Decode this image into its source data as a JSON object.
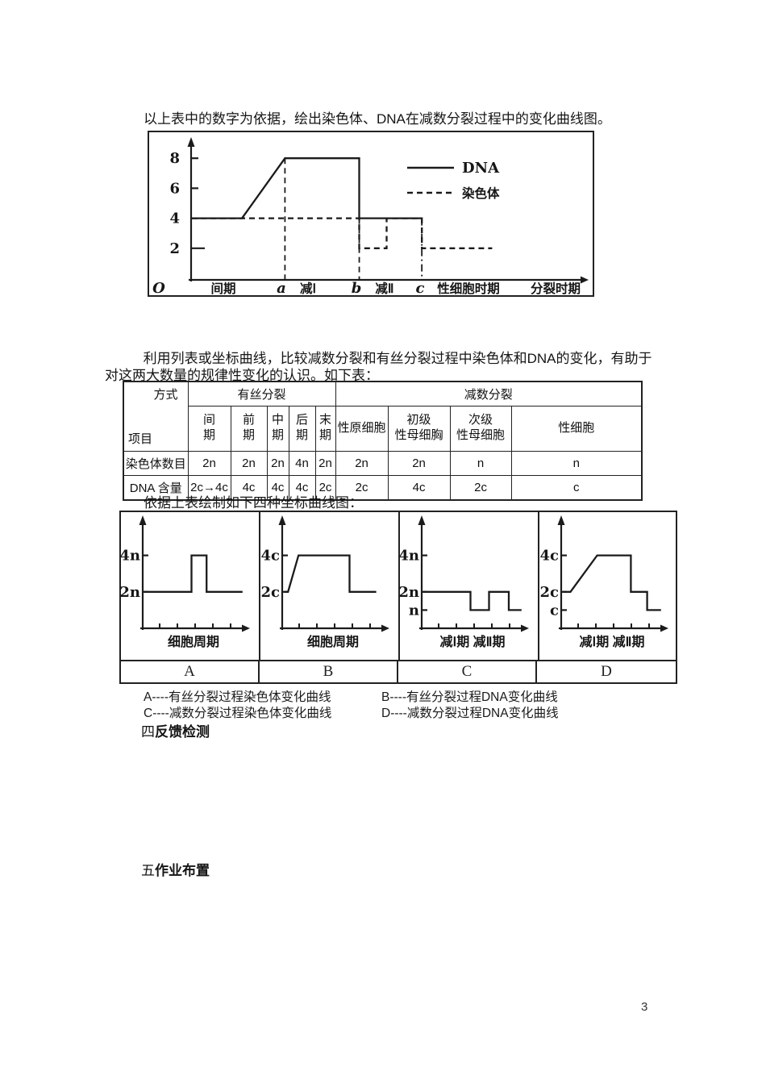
{
  "intro_line": "以上表中的数字为依据，绘出染色体、DNA在减数分裂过程中的变化曲线图。",
  "paragraph": "利用列表或坐标曲线，比较减数分裂和有丝分裂过程中染色体和DNA的变化，有助于对这两大数量的规律性变化的认识。如下表：",
  "panel_intro": "依据上表绘制如下四种坐标曲线图：",
  "table": {
    "corner": {
      "top": "方式",
      "bottom": "项目"
    },
    "group_mitosis": "有丝分裂",
    "group_meiosis": "减数分裂",
    "mitosis_phases": [
      "间\n期",
      "前\n期",
      "中\n期",
      "后\n期",
      "末\n期"
    ],
    "meiosis_phases": [
      "性原细胞",
      "初级\n性母细胸",
      "次级\n性母细胞",
      "性细胞"
    ],
    "rows": [
      {
        "label": "染色体数目",
        "values": [
          "2n",
          "2n",
          "2n",
          "4n",
          "2n",
          "2n",
          "2n",
          "n",
          "n"
        ]
      },
      {
        "label": "DNA 含量",
        "values": [
          "2c→4c",
          "4c",
          "4c",
          "4c",
          "2c",
          "2c",
          "4c",
          "2c",
          "c"
        ]
      }
    ]
  },
  "sections": {
    "four": {
      "num": "四",
      "title": "反馈检测"
    },
    "five": {
      "num": "五",
      "title": "作业布置"
    }
  },
  "page_number": "3",
  "chart_data": [
    {
      "id": "main",
      "type": "line",
      "title": "染色体、DNA在减数分裂过程中的变化曲线图",
      "ylim": [
        0,
        9
      ],
      "y_tick_labels": [
        {
          "text": "8",
          "v": 8
        },
        {
          "text": "6",
          "v": 6
        },
        {
          "text": "4",
          "v": 4
        },
        {
          "text": "2",
          "v": 2,
          "long": true
        }
      ],
      "x_labels": [
        "O",
        "间期",
        "a",
        "减Ⅰ",
        "b",
        "减Ⅱ",
        "c",
        "性细胞时期",
        "分裂时期"
      ],
      "legend": [
        {
          "label": "DNA",
          "style": "solid"
        },
        {
          "label": "染色体",
          "style": "dashed"
        }
      ],
      "guides": [
        {
          "x": 2.4,
          "from": 8,
          "style": "dashed"
        },
        {
          "x": 4.3,
          "from": 4,
          "style": "dashed"
        },
        {
          "x": 5.9,
          "from": 4,
          "style": "dashdot"
        }
      ],
      "series": [
        {
          "name": "DNA",
          "style": "solid",
          "points": [
            [
              0,
              4
            ],
            [
              1.3,
              4
            ],
            [
              2.4,
              8
            ],
            [
              4.3,
              8
            ],
            [
              4.3,
              4
            ],
            [
              5.9,
              4
            ]
          ]
        },
        {
          "name": "染色体",
          "style": "dashed",
          "points": [
            [
              0,
              4
            ],
            [
              4.3,
              4
            ],
            [
              4.3,
              2
            ],
            [
              5.0,
              2
            ],
            [
              5.0,
              4
            ],
            [
              5.9,
              4
            ],
            [
              5.9,
              2
            ],
            [
              7.7,
              2
            ]
          ]
        }
      ]
    },
    {
      "id": "A",
      "type": "line",
      "panel_label": "A",
      "caption": "A----有丝分裂过程染色体变化曲线",
      "xlabel": "细胞周期",
      "y_tick_labels": [
        {
          "text": "4n",
          "v": 4
        },
        {
          "text": "2n",
          "v": 2
        }
      ],
      "series": [
        {
          "name": "染色体",
          "style": "solid",
          "points": [
            [
              0.1,
              2
            ],
            [
              4.2,
              2
            ],
            [
              4.2,
              4
            ],
            [
              5.5,
              4
            ],
            [
              5.5,
              2
            ],
            [
              8.6,
              2
            ]
          ]
        }
      ]
    },
    {
      "id": "B",
      "type": "line",
      "panel_label": "B",
      "caption": "B----有丝分裂过程DNA变化曲线",
      "xlabel": "细胞周期",
      "y_tick_labels": [
        {
          "text": "4c",
          "v": 4
        },
        {
          "text": "2c",
          "v": 2
        }
      ],
      "series": [
        {
          "name": "DNA",
          "style": "solid",
          "points": [
            [
              0.2,
              2
            ],
            [
              0.5,
              2
            ],
            [
              1.4,
              4
            ],
            [
              5.8,
              4
            ],
            [
              5.8,
              2
            ],
            [
              8.1,
              2
            ]
          ]
        }
      ]
    },
    {
      "id": "C",
      "type": "line",
      "panel_label": "C",
      "caption": "C----减数分裂过程染色体变化曲线",
      "xlabel": "减Ⅰ期 减Ⅱ期",
      "y_tick_labels": [
        {
          "text": "4n",
          "v": 4
        },
        {
          "text": "2n",
          "v": 2
        },
        {
          "text": "n",
          "v": 1
        }
      ],
      "series": [
        {
          "name": "染色体",
          "style": "solid",
          "points": [
            [
              0.1,
              2
            ],
            [
              4.2,
              2
            ],
            [
              4.2,
              1
            ],
            [
              5.8,
              1
            ],
            [
              5.8,
              2
            ],
            [
              7.5,
              2
            ],
            [
              7.5,
              1
            ],
            [
              8.6,
              1
            ]
          ]
        }
      ]
    },
    {
      "id": "D",
      "type": "line",
      "panel_label": "D",
      "caption": "D----减数分裂过程DNA变化曲线",
      "xlabel": "减Ⅰ期 减Ⅱ期",
      "y_tick_labels": [
        {
          "text": "4c",
          "v": 4
        },
        {
          "text": "2c",
          "v": 2
        },
        {
          "text": "c",
          "v": 1
        }
      ],
      "series": [
        {
          "name": "DNA",
          "style": "solid",
          "points": [
            [
              0.15,
              2
            ],
            [
              0.8,
              2
            ],
            [
              3.1,
              4
            ],
            [
              6.0,
              4
            ],
            [
              6.0,
              2
            ],
            [
              7.4,
              2
            ],
            [
              7.4,
              1
            ],
            [
              8.6,
              1
            ]
          ]
        }
      ]
    }
  ]
}
